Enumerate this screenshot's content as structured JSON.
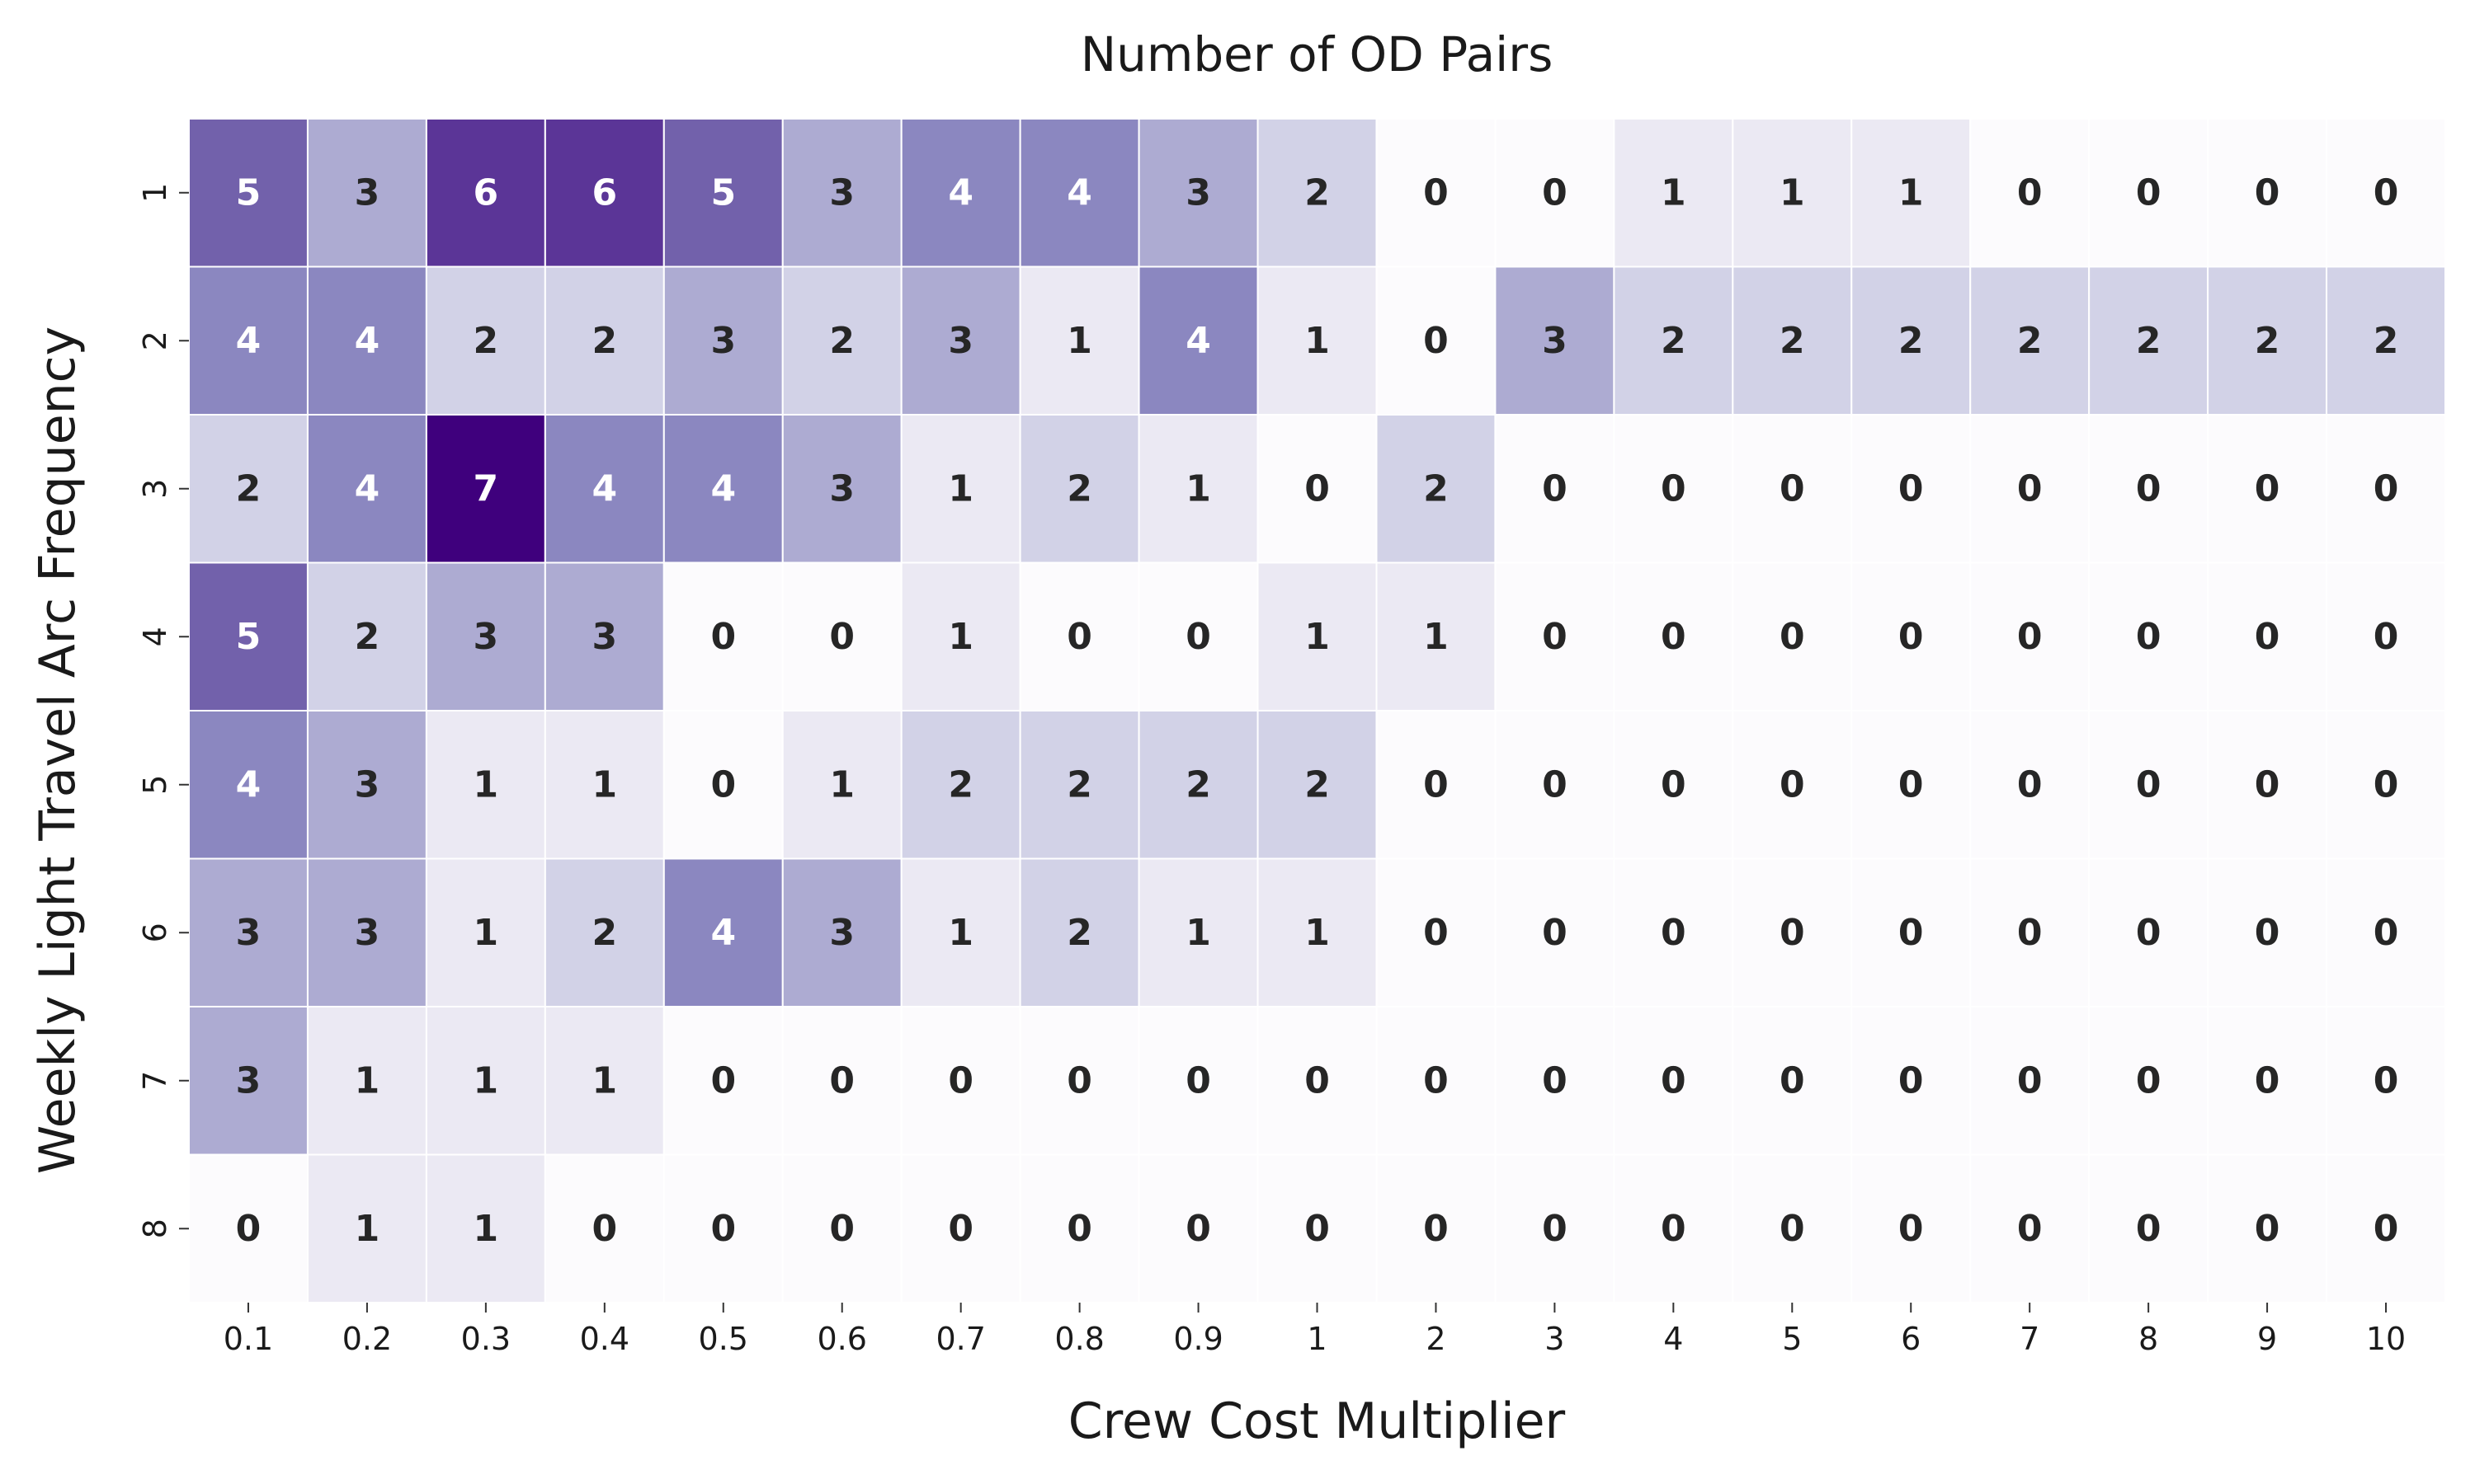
{
  "chart_data": {
    "type": "heatmap",
    "title": "Number of OD Pairs",
    "xlabel": "Crew Cost Multiplier",
    "ylabel": "Weekly Light Travel Arc Frequency",
    "x_categories": [
      "0.1",
      "0.2",
      "0.3",
      "0.4",
      "0.5",
      "0.6",
      "0.7",
      "0.8",
      "0.9",
      "1",
      "2",
      "3",
      "4",
      "5",
      "6",
      "7",
      "8",
      "9",
      "10"
    ],
    "y_categories": [
      "1",
      "2",
      "3",
      "4",
      "5",
      "6",
      "7",
      "8"
    ],
    "values": [
      [
        5,
        3,
        6,
        6,
        5,
        3,
        4,
        4,
        3,
        2,
        0,
        0,
        1,
        1,
        1,
        0,
        0,
        0,
        0
      ],
      [
        4,
        4,
        2,
        2,
        3,
        2,
        3,
        1,
        4,
        1,
        0,
        3,
        2,
        2,
        2,
        2,
        2,
        2,
        2
      ],
      [
        2,
        4,
        7,
        4,
        4,
        3,
        1,
        2,
        1,
        0,
        2,
        0,
        0,
        0,
        0,
        0,
        0,
        0,
        0
      ],
      [
        5,
        2,
        3,
        3,
        0,
        0,
        1,
        0,
        0,
        1,
        1,
        0,
        0,
        0,
        0,
        0,
        0,
        0,
        0
      ],
      [
        4,
        3,
        1,
        1,
        0,
        1,
        2,
        2,
        2,
        2,
        0,
        0,
        0,
        0,
        0,
        0,
        0,
        0,
        0
      ],
      [
        3,
        3,
        1,
        2,
        4,
        3,
        1,
        2,
        1,
        1,
        0,
        0,
        0,
        0,
        0,
        0,
        0,
        0,
        0
      ],
      [
        3,
        1,
        1,
        1,
        0,
        0,
        0,
        0,
        0,
        0,
        0,
        0,
        0,
        0,
        0,
        0,
        0,
        0,
        0
      ],
      [
        0,
        1,
        1,
        0,
        0,
        0,
        0,
        0,
        0,
        0,
        0,
        0,
        0,
        0,
        0,
        0,
        0,
        0,
        0
      ]
    ],
    "value_range": [
      0,
      7
    ],
    "colormap": [
      "#fcfbfd",
      "#ebe9f3",
      "#d2d2e7",
      "#adabd2",
      "#8b87c0",
      "#7261ab",
      "#5b3597",
      "#3f007d"
    ],
    "annotations": true,
    "colorbar": false
  }
}
